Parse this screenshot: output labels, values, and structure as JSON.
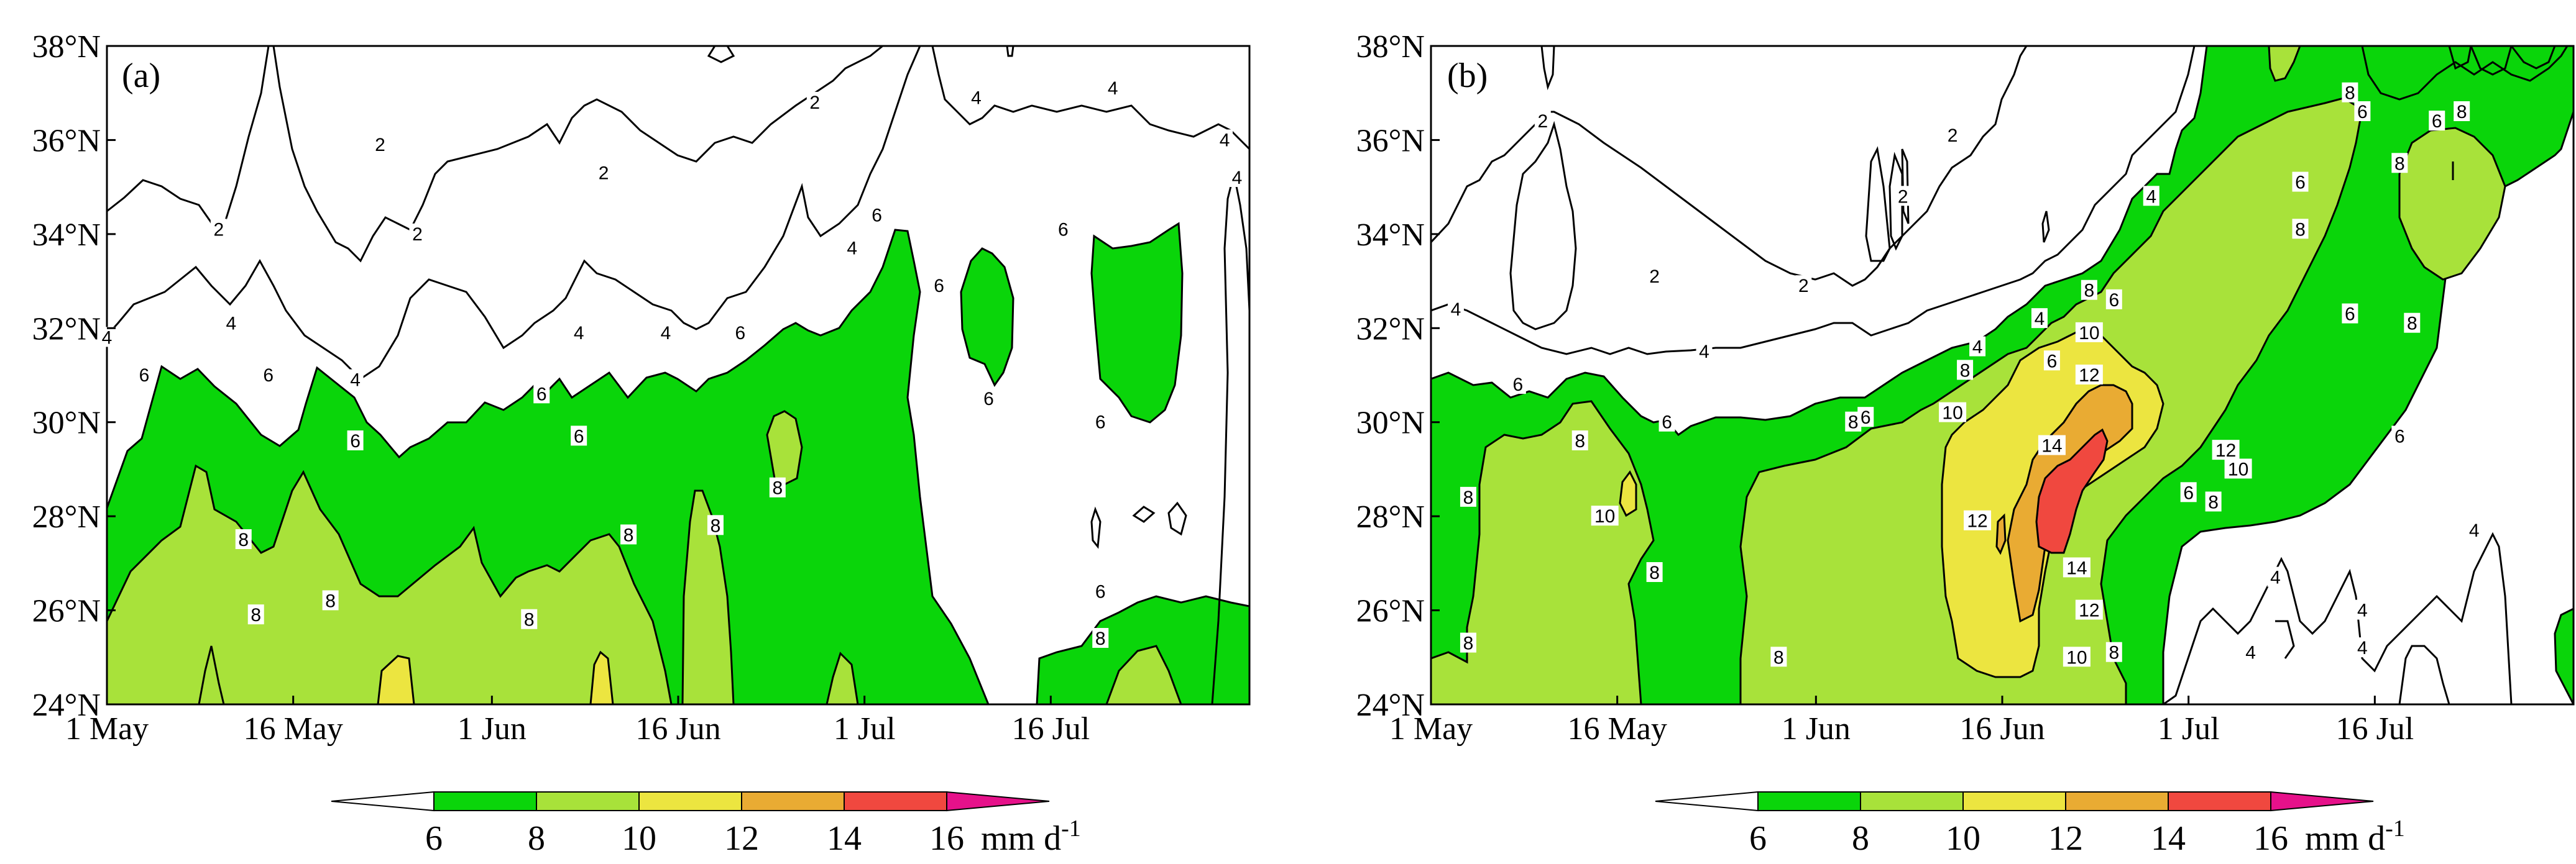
{
  "chart_data": [
    {
      "type": "contour",
      "panel_label": "(a)",
      "x_ticks": [
        "1 May",
        "16 May",
        "1 Jun",
        "16 Jun",
        "1 Jul",
        "16 Jul"
      ],
      "y_ticks": [
        "24°N",
        "26°N",
        "28°N",
        "30°N",
        "32°N",
        "34°N",
        "36°N",
        "38°N"
      ],
      "xlim": [
        "1 May",
        "31 Jul"
      ],
      "ylim": [
        24,
        38
      ],
      "contour_levels": [
        2,
        4,
        6,
        8,
        10,
        12,
        14
      ],
      "contour_labels": [
        {
          "value": "2",
          "x": "23 May",
          "y": 35.9
        },
        {
          "value": "2",
          "x": "10 May",
          "y": 34.1
        },
        {
          "value": "2",
          "x": "26 May",
          "y": 34.0
        },
        {
          "value": "2",
          "x": "10 Jun",
          "y": 35.3
        },
        {
          "value": "2",
          "x": "27 Jun",
          "y": 36.8
        },
        {
          "value": "4",
          "x": "1 May",
          "y": 31.8
        },
        {
          "value": "4",
          "x": "11 May",
          "y": 32.1
        },
        {
          "value": "4",
          "x": "21 May",
          "y": 30.9
        },
        {
          "value": "4",
          "x": "8 Jun",
          "y": 31.9
        },
        {
          "value": "4",
          "x": "15 Jun",
          "y": 31.9
        },
        {
          "value": "4",
          "x": "30 Jun",
          "y": 33.7
        },
        {
          "value": "4",
          "x": "10 Jul",
          "y": 36.9
        },
        {
          "value": "4",
          "x": "21 Jul",
          "y": 37.1
        },
        {
          "value": "4",
          "x": "30 Jul",
          "y": 36.0
        },
        {
          "value": "4",
          "x": "31 Jul",
          "y": 35.2
        },
        {
          "value": "6",
          "x": "4 May",
          "y": 31.0
        },
        {
          "value": "6",
          "x": "14 May",
          "y": 31.0
        },
        {
          "value": "6",
          "x": "21 May",
          "y": 29.6
        },
        {
          "value": "6",
          "x": "5 Jun",
          "y": 30.6
        },
        {
          "value": "6",
          "x": "8 Jun",
          "y": 29.7
        },
        {
          "value": "6",
          "x": "21 Jun",
          "y": 31.9
        },
        {
          "value": "6",
          "x": "2 Jul",
          "y": 34.4
        },
        {
          "value": "6",
          "x": "7 Jul",
          "y": 32.9
        },
        {
          "value": "6",
          "x": "11 Jul",
          "y": 30.5
        },
        {
          "value": "6",
          "x": "17 Jul",
          "y": 34.1
        },
        {
          "value": "6",
          "x": "20 Jul",
          "y": 30.0
        },
        {
          "value": "6",
          "x": "20 Jul",
          "y": 26.4
        },
        {
          "value": "8",
          "x": "12 May",
          "y": 27.5
        },
        {
          "value": "8",
          "x": "19 May",
          "y": 26.2
        },
        {
          "value": "8",
          "x": "13 May",
          "y": 25.9
        },
        {
          "value": "8",
          "x": "4 Jun",
          "y": 25.8
        },
        {
          "value": "8",
          "x": "12 Jun",
          "y": 27.6
        },
        {
          "value": "8",
          "x": "19 Jun",
          "y": 27.8
        },
        {
          "value": "8",
          "x": "24 Jun",
          "y": 28.6
        },
        {
          "value": "8",
          "x": "20 Jul",
          "y": 25.4
        }
      ]
    },
    {
      "type": "contour",
      "panel_label": "(b)",
      "x_ticks": [
        "1 May",
        "16 May",
        "1 Jun",
        "16 Jun",
        "1 Jul",
        "16 Jul"
      ],
      "y_ticks": [
        "24°N",
        "26°N",
        "28°N",
        "30°N",
        "32°N",
        "34°N",
        "36°N",
        "38°N"
      ],
      "xlim": [
        "1 May",
        "31 Jul"
      ],
      "ylim": [
        24,
        38
      ],
      "contour_levels": [
        2,
        4,
        6,
        8,
        10,
        12,
        14
      ],
      "contour_labels": [
        {
          "value": "2",
          "x": "10 May",
          "y": 36.4
        },
        {
          "value": "2",
          "x": "19 May",
          "y": 33.1
        },
        {
          "value": "2",
          "x": "31 May",
          "y": 32.9
        },
        {
          "value": "2",
          "x": "8 Jun",
          "y": 34.8
        },
        {
          "value": "2",
          "x": "12 Jun",
          "y": 36.1
        },
        {
          "value": "4",
          "x": "3 May",
          "y": 32.4
        },
        {
          "value": "4",
          "x": "23 May",
          "y": 31.5
        },
        {
          "value": "4",
          "x": "14 Jun",
          "y": 31.6
        },
        {
          "value": "4",
          "x": "19 Jun",
          "y": 32.2
        },
        {
          "value": "4",
          "x": "28 Jun",
          "y": 34.8
        },
        {
          "value": "4",
          "x": "8 Jul",
          "y": 26.7
        },
        {
          "value": "4",
          "x": "6 Jul",
          "y": 25.1
        },
        {
          "value": "4",
          "x": "15 Jul",
          "y": 26.0
        },
        {
          "value": "4",
          "x": "15 Jul",
          "y": 25.2
        },
        {
          "value": "4",
          "x": "24 Jul",
          "y": 27.7
        },
        {
          "value": "6",
          "x": "8 May",
          "y": 30.8
        },
        {
          "value": "6",
          "x": "20 May",
          "y": 30.0
        },
        {
          "value": "6",
          "x": "5 Jun",
          "y": 30.1
        },
        {
          "value": "6",
          "x": "20 Jun",
          "y": 31.3
        },
        {
          "value": "6",
          "x": "25 Jun",
          "y": 32.6
        },
        {
          "value": "6",
          "x": "1 Jul",
          "y": 28.5
        },
        {
          "value": "6",
          "x": "10 Jul",
          "y": 35.1
        },
        {
          "value": "6",
          "x": "15 Jul",
          "y": 36.6
        },
        {
          "value": "6",
          "x": "21 Jul",
          "y": 36.4
        },
        {
          "value": "6",
          "x": "14 Jul",
          "y": 32.3
        },
        {
          "value": "6",
          "x": "18 Jul",
          "y": 29.7
        },
        {
          "value": "8",
          "x": "4 May",
          "y": 28.4
        },
        {
          "value": "8",
          "x": "13 May",
          "y": 29.6
        },
        {
          "value": "8",
          "x": "4 May",
          "y": 25.3
        },
        {
          "value": "8",
          "x": "19 May",
          "y": 26.8
        },
        {
          "value": "8",
          "x": "29 May",
          "y": 25.0
        },
        {
          "value": "8",
          "x": "4 Jun",
          "y": 30.0
        },
        {
          "value": "8",
          "x": "13 Jun",
          "y": 31.1
        },
        {
          "value": "8",
          "x": "23 Jun",
          "y": 32.8
        },
        {
          "value": "8",
          "x": "25 Jun",
          "y": 25.1
        },
        {
          "value": "8",
          "x": "3 Jul",
          "y": 28.3
        },
        {
          "value": "8",
          "x": "10 Jul",
          "y": 34.1
        },
        {
          "value": "8",
          "x": "14 Jul",
          "y": 37.0
        },
        {
          "value": "8",
          "x": "18 Jul",
          "y": 35.5
        },
        {
          "value": "8",
          "x": "19 Jul",
          "y": 32.1
        },
        {
          "value": "8",
          "x": "23 Jul",
          "y": 36.6
        },
        {
          "value": "10",
          "x": "15 May",
          "y": 28.0
        },
        {
          "value": "10",
          "x": "12 Jun",
          "y": 30.2
        },
        {
          "value": "10",
          "x": "23 Jun",
          "y": 31.9
        },
        {
          "value": "10",
          "x": "22 Jun",
          "y": 25.0
        },
        {
          "value": "10",
          "x": "5 Jul",
          "y": 29.0
        },
        {
          "value": "12",
          "x": "14 Jun",
          "y": 27.9
        },
        {
          "value": "12",
          "x": "23 Jun",
          "y": 26.0
        },
        {
          "value": "12",
          "x": "23 Jun",
          "y": 31.0
        },
        {
          "value": "12",
          "x": "4 Jul",
          "y": 29.4
        },
        {
          "value": "14",
          "x": "20 Jun",
          "y": 29.5
        },
        {
          "value": "14",
          "x": "22 Jun",
          "y": 26.9
        }
      ]
    }
  ],
  "colorbar": {
    "boundaries": [
      "6",
      "8",
      "10",
      "12",
      "14",
      "16"
    ],
    "unit": "mm d",
    "unit_exponent": "-1",
    "colors": [
      "#ffffff",
      "#0ad50a",
      "#a8e23a",
      "#ece540",
      "#e9ab33",
      "#f0483f",
      "#e6118a"
    ]
  }
}
